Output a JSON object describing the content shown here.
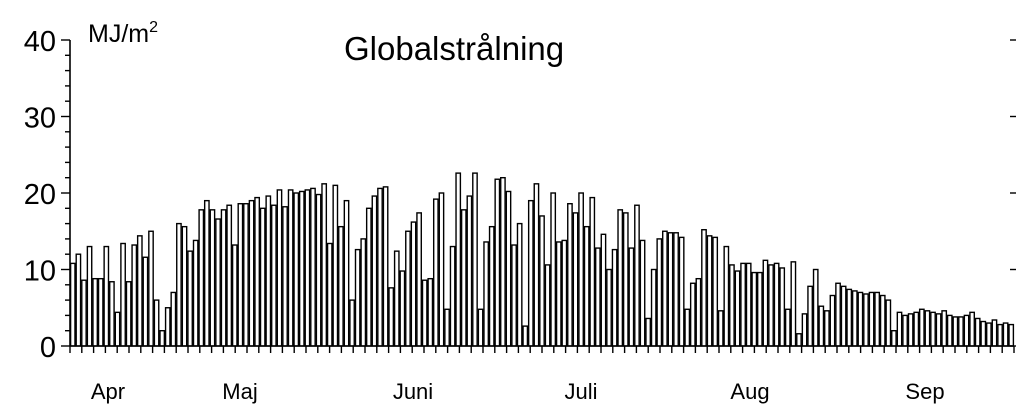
{
  "chart_data": {
    "type": "bar",
    "title": "Globalstrålning",
    "ylabel": "MJ/m",
    "ylabel_superscript": "2",
    "ylim": [
      0,
      40
    ],
    "yticks": [
      "0",
      "10",
      "20",
      "30",
      "40"
    ],
    "months": [
      "Apr",
      "Maj",
      "Juni",
      "Juli",
      "Aug",
      "Sep"
    ],
    "grid": false,
    "values": [
      10.8,
      12.0,
      8.6,
      13.0,
      8.8,
      8.8,
      13.0,
      8.4,
      4.4,
      13.4,
      8.4,
      13.2,
      14.4,
      11.6,
      15.0,
      6.0,
      2.0,
      5.0,
      7.0,
      16.0,
      15.6,
      12.4,
      13.8,
      17.8,
      19.0,
      17.8,
      16.6,
      17.8,
      18.4,
      13.2,
      18.6,
      18.6,
      19.0,
      19.4,
      18.0,
      19.6,
      18.4,
      20.4,
      18.2,
      20.4,
      20.0,
      20.2,
      20.4,
      20.6,
      19.8,
      21.2,
      13.4,
      21.0,
      15.6,
      19.0,
      6.0,
      12.6,
      14.0,
      18.0,
      19.6,
      20.6,
      20.8,
      7.6,
      12.4,
      9.8,
      15.0,
      16.2,
      17.4,
      8.6,
      8.8,
      19.2,
      20.0,
      4.8,
      13.0,
      22.6,
      17.8,
      19.6,
      22.6,
      4.8,
      13.6,
      15.6,
      21.8,
      22.0,
      20.2,
      13.2,
      16.0,
      2.6,
      19.0,
      21.2,
      17.0,
      10.6,
      20.0,
      13.6,
      13.8,
      18.6,
      17.4,
      20.0,
      15.6,
      19.4,
      12.8,
      14.6,
      10.0,
      12.6,
      17.8,
      17.4,
      12.8,
      18.4,
      13.8,
      3.6,
      10.0,
      14.0,
      15.0,
      14.8,
      14.8,
      14.2,
      4.8,
      8.2,
      8.8,
      15.2,
      14.4,
      14.2,
      4.6,
      13.0,
      10.6,
      9.8,
      10.8,
      10.8,
      9.6,
      9.6,
      11.2,
      10.6,
      10.8,
      10.2,
      4.8,
      11.0,
      1.6,
      4.2,
      7.8,
      10.0,
      5.2,
      4.6,
      6.6,
      8.2,
      7.8,
      7.4,
      7.2,
      7.0,
      6.8,
      7.0,
      7.0,
      6.6,
      6.0,
      2.0,
      4.4,
      4.0,
      4.2,
      4.4,
      4.8,
      4.6,
      4.4,
      4.2,
      4.6,
      4.0,
      3.8,
      3.8,
      4.0,
      4.4,
      3.6,
      3.2,
      3.0,
      3.4,
      2.8,
      3.0,
      2.8
    ]
  }
}
